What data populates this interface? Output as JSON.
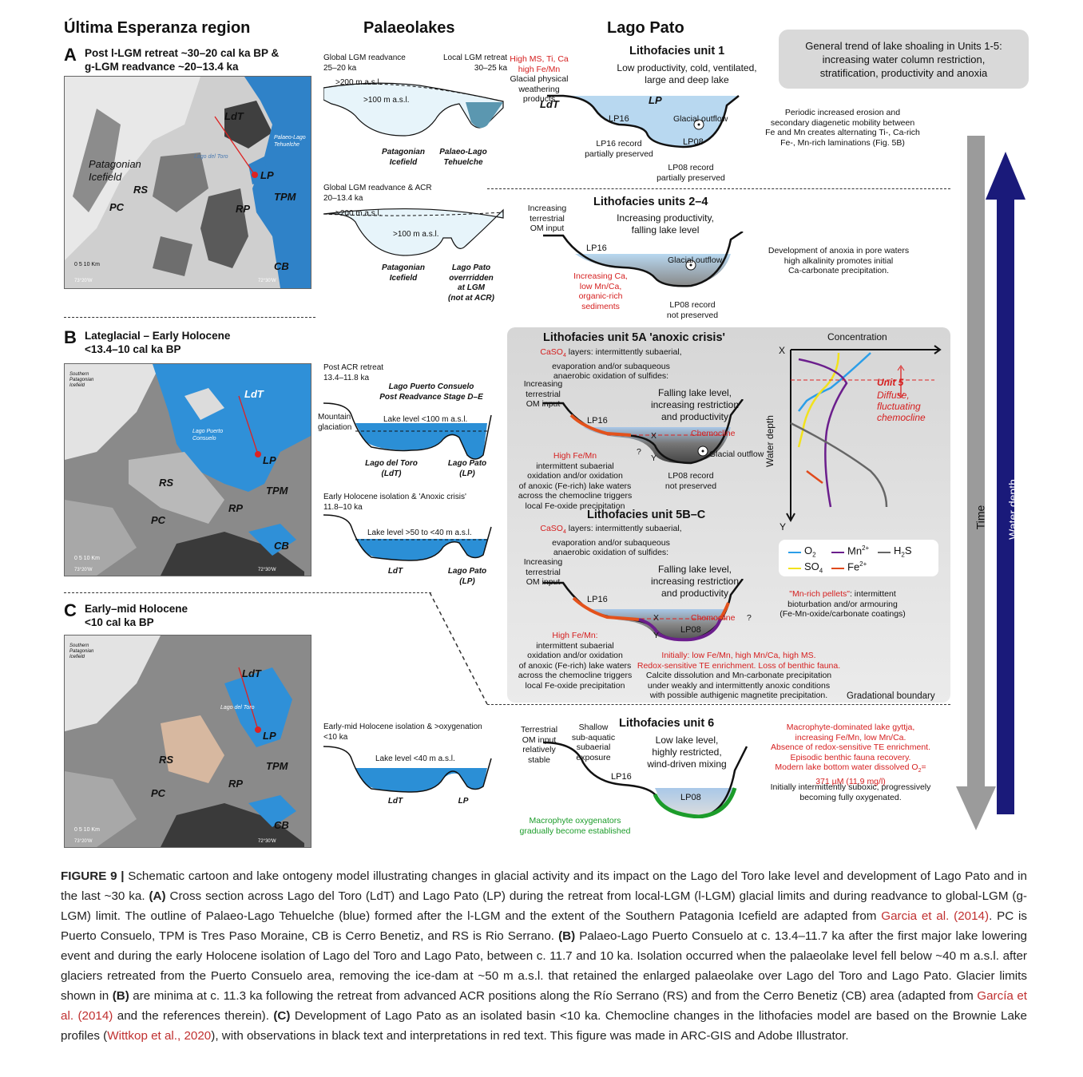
{
  "headers": {
    "region": "Última Esperanza region",
    "palaeolakes": "Palaeolakes",
    "lagopato": "Lago Pato"
  },
  "panels": {
    "A": {
      "letter": "A",
      "title1": "Post l-LGM retreat ~30–20 cal ka BP &",
      "title2": "g-LGM readvance ~20–13.4 ka"
    },
    "B": {
      "letter": "B",
      "title1": "Lateglacial – Early Holocene",
      "title2": "<13.4–10 cal ka BP"
    },
    "C": {
      "letter": "C",
      "title1": "Early–mid Holocene",
      "title2": "<10 cal ka BP"
    }
  },
  "maps": {
    "A": {
      "ldt": "LdT",
      "lp": "LP",
      "rs": "RS",
      "pc": "PC",
      "rp": "RP",
      "tpm": "TPM",
      "cb": "CB",
      "icefield": "Patagonian Icefield",
      "lago_del_toro": "Lago del Toro",
      "palaeo": "Palaeo-Lago Tehuelche",
      "scale": "0 5 10 Km",
      "lon1": "73°20'W",
      "lon2": "72°30'W"
    },
    "B": {
      "ldt": "LdT",
      "lp": "LP",
      "rs": "RS",
      "pc": "PC",
      "rp": "RP",
      "tpm": "TPM",
      "cb": "CB",
      "icefield": "Southern Patagonian Icefield",
      "lpc": "Lago Puerto Consuelo",
      "scale": "0 5 10 Km",
      "lon1": "73°20'W",
      "lon2": "72°30'W"
    },
    "C": {
      "ldt": "LdT",
      "lp": "LP",
      "rs": "RS",
      "pc": "PC",
      "rp": "RP",
      "tpm": "TPM",
      "cb": "CB",
      "icefield": "Southern Patagonian Icefield",
      "lago_del_toro": "Lago del Toro",
      "scale": "0 5 10 Km",
      "lon1": "73°20'W",
      "lon2": "72°30'W"
    }
  },
  "palaeolakes": {
    "a1": {
      "global": "Global LGM readvance",
      "global_age": "25–20 ka",
      "local": "Local LGM retreat",
      "local_age": "30–25 ka",
      "l200": ">200 m a.s.l.",
      "l100": ">100 m a.s.l.",
      "ice": "Patagonian Icefield",
      "tehuelche": "Palaeo-Lago Tehuelche"
    },
    "a2": {
      "global": "Global LGM readvance & ACR",
      "global_age": "20–13.4 ka",
      "l200": ">200 m a.s.l.",
      "l100": ">100 m a.s.l.",
      "ice": "Patagonian Icefield",
      "overridden1": "Lago Pato",
      "overridden2": "overrridden",
      "overridden3": "at LGM",
      "overridden4": "(not at ACR)"
    },
    "b1": {
      "post": "Post ACR retreat",
      "post_age": "13.4–11.8 ka",
      "lpc": "Lago Puerto Consuelo",
      "stage": "Post Readvance Stage D–E",
      "mountain": "Mountain",
      "glaciation": "glaciation",
      "level": "Lake level <100 m a.s.l.",
      "ldt": "Lago del Toro",
      "ldt2": "(LdT)",
      "lp": "Lago Pato",
      "lp2": "(LP)"
    },
    "b2": {
      "early": "Early Holocene isolation & 'Anoxic crisis'",
      "age": "11.8–10 ka",
      "level": "Lake level >50 to <40 m a.s.l.",
      "ldt": "LdT",
      "lp": "Lago Pato",
      "lp2": "(LP)"
    },
    "c1": {
      "early": "Early-mid Holocene isolation & >oxygenation",
      "age": "<10 ka",
      "level": "Lake level <40 m a.s.l.",
      "ldt": "LdT",
      "lp": "LP"
    }
  },
  "trend_box": {
    "line1": "General trend of lake shoaling in Units 1-5:",
    "line2": "increasing water column restriction,",
    "line3": "stratification, productivity and anoxia"
  },
  "unit1": {
    "title": "Lithofacies unit 1",
    "desc1": "Low productivity, cold, ventilated,",
    "desc2": "large and deep lake",
    "red1": "High MS, Ti, Ca",
    "red2": "high Fe/Mn",
    "gl1": "Glacial physical",
    "gl2": "weathering",
    "gl3": "products",
    "ldt": "LdT",
    "lp": "LP",
    "lp16": "LP16",
    "lp08": "LP08",
    "outflow": "Glacial outflow",
    "lp16rec1": "LP16 record",
    "lp16rec2": "partially preserved",
    "lp08rec1": "LP08 record",
    "lp08rec2": "partially preserved",
    "right1": "Periodic increased erosion and",
    "right2": "secondary diagenetic mobility between",
    "right3": "Fe and Mn creates alternating Ti-, Ca-rich",
    "right4": "Fe-, Mn-rich laminations (Fig. 5B)"
  },
  "unit24": {
    "title": "Lithofacies units 2–4",
    "desc1": "Increasing productivity,",
    "desc2": "falling lake level",
    "inc1": "Increasing",
    "inc2": "terrestrial",
    "inc3": "OM input",
    "lp16": "LP16",
    "outflow": "Glacial outflow",
    "red1": "Increasing Ca,",
    "red2": "low Mn/Ca,",
    "red3": "organic-rich",
    "red4": "sediments",
    "lp08rec1": "LP08 record",
    "lp08rec2": "not preserved",
    "right1": "Development of anoxia in pore waters",
    "right2": "high alkalinity promotes initial",
    "right3": "Ca-carbonate precipitation."
  },
  "unit5a": {
    "title": "Lithofacies unit 5A 'anoxic crisis'",
    "caso4": "CaSO",
    "caso4_sub": "4",
    "caso4_rest": " layers: intermittently subaerial,",
    "l2": "evaporation and/or subaqueous",
    "l3": "anaerobic oxidation of sulfides:",
    "inc1": "Increasing",
    "inc2": "terrestrial",
    "inc3": "OM input",
    "desc1": "Falling lake level,",
    "desc2": "increasing restriction",
    "desc3": "and productivity",
    "lp16": "LP16",
    "chemocline": "Chemocline",
    "outflow": "Glacial outflow",
    "x": "X",
    "y": "Y",
    "q": "?",
    "red_fe": "High Fe/Mn",
    "b1": "intermittent subaerial",
    "b2": "oxidation and/or oxidation",
    "b3": "of anoxic (Fe-rich) lake waters",
    "b4": "across the chemocline triggers",
    "b5": "local Fe-oxide precipitation",
    "lp08rec1": "LP08 record",
    "lp08rec2": "not preserved"
  },
  "profile": {
    "concentration": "Concentration",
    "x": "X",
    "y": "Y",
    "water_depth": "Water depth",
    "unit5": "Unit 5",
    "diffuse1": "Diffuse,",
    "diffuse2": "fluctuating",
    "diffuse3": "chemocline"
  },
  "legend": {
    "o2": "O",
    "o2_sub": "2",
    "mn": "Mn",
    "mn_sup": "2+",
    "h2s": "H",
    "h2s_sub": "2",
    "h2s_rest": "S",
    "so4": "SO",
    "so4_sub": "4",
    "fe": "Fe",
    "fe_sup": "2+",
    "colors": {
      "o2": "#2b9ee8",
      "mn": "#6b1e8c",
      "h2s": "#666666",
      "so4": "#f2e21c",
      "fe": "#e04a1c"
    }
  },
  "unit5bc": {
    "title": "Lithofacies unit 5B–C",
    "caso4": "CaSO",
    "caso4_sub": "4",
    "caso4_rest": " layers: intermittently subaerial,",
    "l2": "evaporation and/or subaqueous",
    "l3": "anaerobic oxidation of sulfides:",
    "inc1": "Increasing",
    "inc2": "terrestrial",
    "inc3": "OM input",
    "desc1": "Falling lake level,",
    "desc2": "increasing restriction",
    "desc3": "and productivity",
    "lp16": "LP16",
    "lp08": "LP08",
    "chemocline": "Chemocline",
    "x": "X",
    "y": "Y",
    "q": "?",
    "red_fe": "High Fe/Mn:",
    "b1": "intermittent subaerial",
    "b2": "oxidation and/or oxidation",
    "b3": "of anoxic (Fe-rich) lake waters",
    "b4": "across the chemocline triggers",
    "b5": "local Fe-oxide precipitation",
    "mn1": "\"Mn-rich pellets\"",
    "mn1b": ": intermittent",
    "mn2": "bioturbation and/or armouring",
    "mn3": "(Fe-Mn-oxide/carbonate coatings)",
    "r1": "Initially: low Fe/Mn, high Mn/Ca, high MS.",
    "r2": "Redox-sensitive TE enrichment. Loss of benthic fauna.",
    "k1": "Calcite dissolution and Mn-carbonate precipitation",
    "k2": "under weakly and intermittently anoxic conditions",
    "k3": "with possible authigenic magnetite precipitation.",
    "boundary": "Gradational boundary"
  },
  "unit6": {
    "title": "Lithofacies unit 6",
    "t1": "Terrestrial",
    "t2": "OM input",
    "t3": "relatively stable",
    "s1": "Shallow",
    "s2": "sub-aquatic",
    "s3": "subaerial",
    "s4": "exposure",
    "lp16": "LP16",
    "lp08": "LP08",
    "d1": "Low lake level,",
    "d2": "highly restricted,",
    "d3": "wind-driven mixing",
    "g1": "Macrophyte oxygenators",
    "g2": "gradually become established",
    "r1": "Macrophyte-dominated lake gyttja,",
    "r2": "increasing Fe/Mn, low Mn/Ca.",
    "r3": "Absence of redox-sensitive TE enrichment.",
    "r4": "Episodic benthic fauna recovery.",
    "r5": "Modern lake bottom water dissolved O",
    "r5sub": "2",
    "r5end": "=",
    "r6": "371 µM (11.9 mg/l)",
    "k1": "Initially intermittently suboxic, progressively",
    "k2": "becoming fully oxygenated."
  },
  "arrows": {
    "time": "Time",
    "depth": "Water depth",
    "time_color": "#9b9b9b",
    "depth_color": "#1a1a7a"
  },
  "caption": {
    "label": "FIGURE 9 |",
    "p1": " Schematic cartoon and lake ontogeny model illustrating changes in glacial activity and its impact on the Lago del Toro lake level and development of Lago Pato and in the last ~30 ka. ",
    "a": "(A)",
    "p2": " Cross section across Lago del Toro (LdT) and Lago Pato (LP) during the retreat from local-LGM (l-LGM) glacial limits and during readvance to global-LGM (g-LGM) limit. The outline of Palaeo-Lago Tehuelche (blue) formed after the l-LGM and the extent of the Southern Patagonia Icefield are adapted from ",
    "cite1": "Garcia et al. (2014)",
    "p3": ". PC is Puerto Consuelo, TPM is Tres Paso Moraine, CB is Cerro Benetiz, and RS is Rio Serrano. ",
    "b": "(B)",
    "p4": " Palaeo-Lago Puerto Consuelo at c. 13.4–11.7 ka after the first major lake lowering event and during the early Holocene isolation of Lago del Toro and Lago Pato, between c. 11.7 and 10 ka. Isolation occurred when the palaeolake level fell below ~40 m a.s.l. after glaciers retreated from the Puerto Consuelo area, removing the ice-dam at ~50 m a.s.l. that retained the enlarged palaeolake over Lago del Toro and Lago Pato. Glacier limits shown in ",
    "b2": "(B)",
    "p5": " are minima at c. 11.3 ka following the retreat from advanced ACR positions along the Río Serrano (RS) and from the Cerro Benetiz (CB) area (adapted from ",
    "cite2": "García et al. (2014)",
    "p6": " and the references therein). ",
    "c": "(C)",
    "p7": " Development of Lago Pato as an isolated basin <10 ka. Chemocline changes in the lithofacies model are based on the Brownie Lake profiles (",
    "cite3": "Wittkop et al., 2020",
    "p8": "), with observations in black text and interpretations in red text. This figure was made in ARC-GIS and Adobe Illustrator."
  }
}
